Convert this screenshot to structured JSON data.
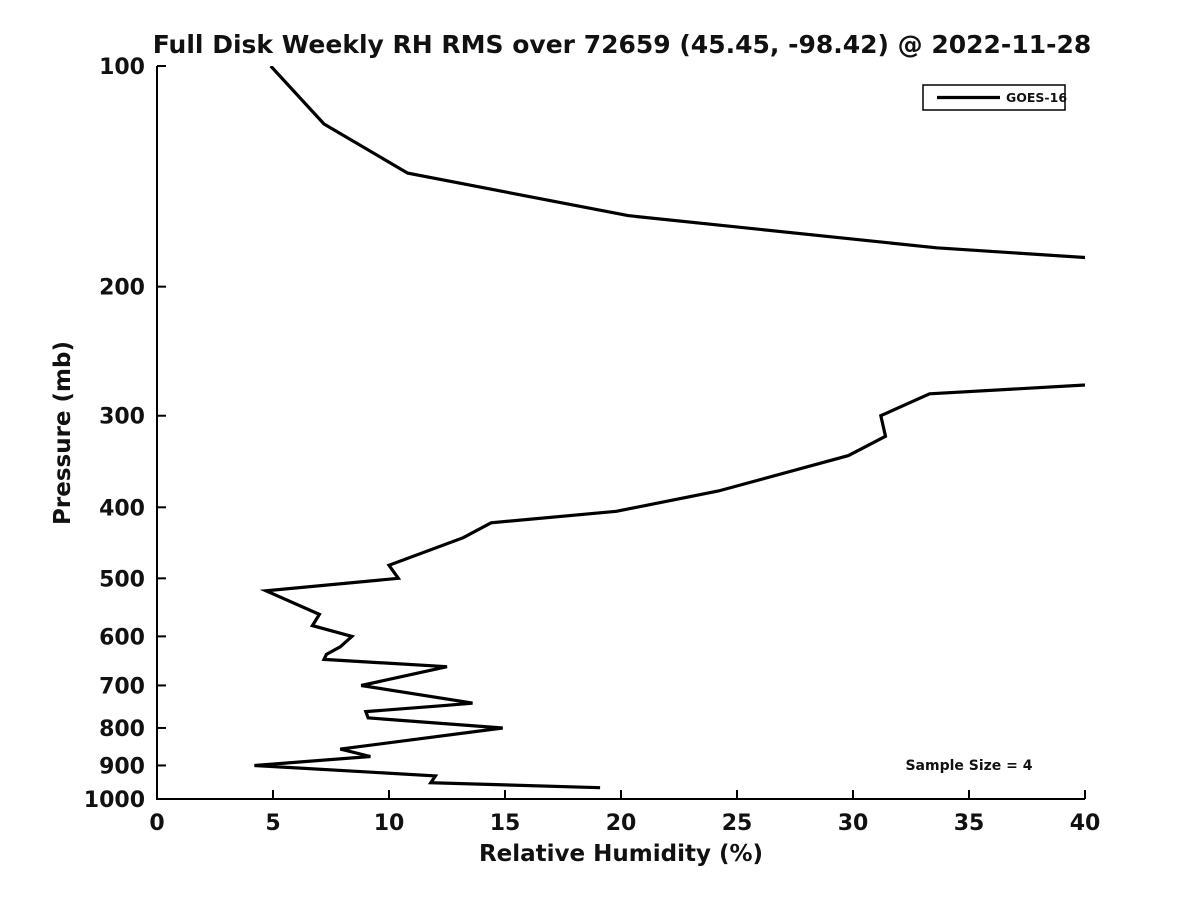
{
  "figure": {
    "background": "#ffffff"
  },
  "chart_data": {
    "type": "line",
    "title": "Full Disk Weekly RH RMS over 72659 (45.45, -98.42) @ 2022-11-28",
    "xlabel": "Relative Humidity (%)",
    "ylabel": "Pressure (mb)",
    "xlim": [
      0,
      40
    ],
    "ylim": [
      100,
      1000
    ],
    "yscale": "log",
    "y_inverted": true,
    "grid": false,
    "xticks": [
      0,
      5,
      10,
      15,
      20,
      25,
      30,
      35,
      40
    ],
    "yticks": [
      100,
      200,
      300,
      400,
      500,
      600,
      700,
      800,
      900,
      1000
    ],
    "line_color": "#000000",
    "axis_color": "#000000",
    "text_color": "#111111",
    "legend": {
      "position": "top-right",
      "entries": [
        "GOES-16"
      ]
    },
    "annotation": "Sample Size = 4",
    "series": [
      {
        "name": "GOES-16",
        "note": "points are [relative_humidity_percent, pressure_mb]; segment between 186mb and 268mb exceeds xlim (RH > 40) and is clipped at the right axis edge",
        "points": [
          [
            4.9,
            100
          ],
          [
            7.2,
            120
          ],
          [
            10.8,
            140
          ],
          [
            20.3,
            160
          ],
          [
            33.6,
            177
          ],
          [
            44.0,
            186
          ],
          [
            44.0,
            268
          ],
          [
            33.3,
            280
          ],
          [
            31.2,
            300
          ],
          [
            31.4,
            320
          ],
          [
            29.8,
            340
          ],
          [
            24.2,
            380
          ],
          [
            19.8,
            405
          ],
          [
            14.4,
            420
          ],
          [
            13.2,
            440
          ],
          [
            10.0,
            480
          ],
          [
            10.4,
            500
          ],
          [
            4.7,
            520
          ],
          [
            7.0,
            560
          ],
          [
            6.7,
            580
          ],
          [
            8.4,
            600
          ],
          [
            7.9,
            620
          ],
          [
            7.3,
            635
          ],
          [
            7.2,
            645
          ],
          [
            12.5,
            660
          ],
          [
            8.8,
            700
          ],
          [
            13.6,
            740
          ],
          [
            12.5,
            745
          ],
          [
            9.0,
            760
          ],
          [
            9.1,
            775
          ],
          [
            14.9,
            800
          ],
          [
            7.9,
            855
          ],
          [
            9.2,
            875
          ],
          [
            4.2,
            900
          ],
          [
            12.0,
            930
          ],
          [
            11.8,
            950
          ],
          [
            19.1,
            965
          ]
        ]
      }
    ]
  }
}
